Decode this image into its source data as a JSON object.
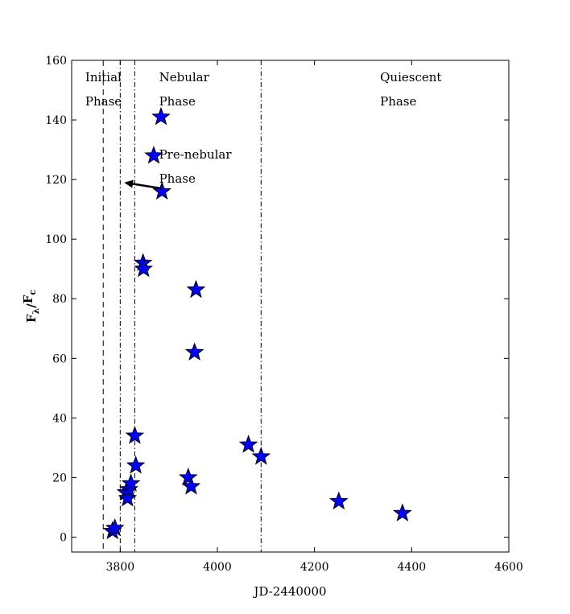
{
  "chart_data": {
    "type": "scatter",
    "xlabel": "JD-2440000",
    "ylabel": "Fλ/Fc",
    "xlim": [
      3700,
      4600
    ],
    "ylim": [
      -5,
      160
    ],
    "xticks": [
      3800,
      4000,
      4200,
      4400,
      4600
    ],
    "yticks": [
      0,
      20,
      40,
      60,
      80,
      100,
      120,
      140,
      160
    ],
    "grid": false,
    "marker": "star",
    "marker_color": "#0000ff",
    "points": [
      {
        "x": 3784,
        "y": 2
      },
      {
        "x": 3789,
        "y": 3
      },
      {
        "x": 3812,
        "y": 15
      },
      {
        "x": 3815,
        "y": 13
      },
      {
        "x": 3818,
        "y": 16
      },
      {
        "x": 3822,
        "y": 18
      },
      {
        "x": 3830,
        "y": 34
      },
      {
        "x": 3832,
        "y": 24
      },
      {
        "x": 3847,
        "y": 92
      },
      {
        "x": 3848,
        "y": 90
      },
      {
        "x": 3869,
        "y": 128
      },
      {
        "x": 3884,
        "y": 141
      },
      {
        "x": 3886,
        "y": 116
      },
      {
        "x": 3940,
        "y": 20
      },
      {
        "x": 3946,
        "y": 17
      },
      {
        "x": 3953,
        "y": 62
      },
      {
        "x": 3956,
        "y": 83
      },
      {
        "x": 4064,
        "y": 31
      },
      {
        "x": 4090,
        "y": 27
      },
      {
        "x": 4250,
        "y": 12
      },
      {
        "x": 4381,
        "y": 8
      }
    ],
    "vlines": [
      {
        "x": 3765,
        "style": "dashed"
      },
      {
        "x": 3800,
        "style": "dashdot"
      },
      {
        "x": 3830,
        "style": "dashdot"
      },
      {
        "x": 4090,
        "style": "dashdot"
      }
    ],
    "arrow": {
      "from": {
        "x": 3886,
        "y": 117
      },
      "to": {
        "x": 3808,
        "y": 119
      }
    },
    "annotations": [
      {
        "lines": [
          "Initial",
          "Phase"
        ],
        "x": 3728,
        "y": 153
      },
      {
        "lines": [
          "Nebular",
          "Phase"
        ],
        "x": 3880,
        "y": 153
      },
      {
        "lines": [
          "Pre-nebular",
          "Phase"
        ],
        "x": 3880,
        "y": 127
      },
      {
        "lines": [
          "Quiescent",
          "Phase"
        ],
        "x": 4335,
        "y": 153
      }
    ]
  }
}
